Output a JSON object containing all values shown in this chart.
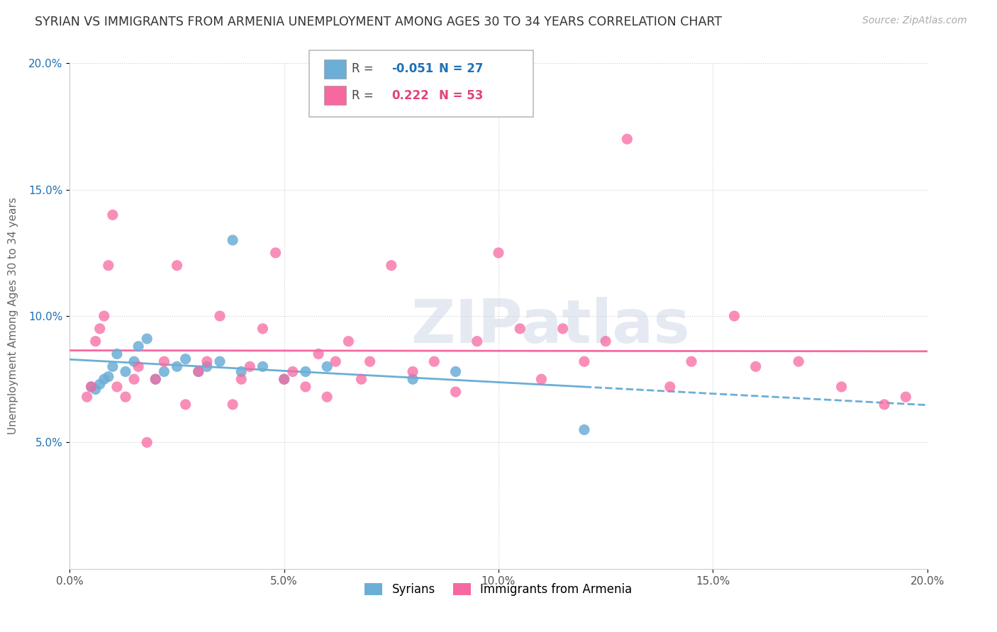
{
  "title": "SYRIAN VS IMMIGRANTS FROM ARMENIA UNEMPLOYMENT AMONG AGES 30 TO 34 YEARS CORRELATION CHART",
  "source": "Source: ZipAtlas.com",
  "ylabel": "Unemployment Among Ages 30 to 34 years",
  "xmin": 0.0,
  "xmax": 0.2,
  "ymin": 0.0,
  "ymax": 0.2,
  "yticks": [
    0.05,
    0.1,
    0.15,
    0.2
  ],
  "xticks": [
    0.0,
    0.05,
    0.1,
    0.15,
    0.2
  ],
  "xtick_labels": [
    "0.0%",
    "5.0%",
    "10.0%",
    "15.0%",
    "20.0%"
  ],
  "ytick_labels": [
    "5.0%",
    "10.0%",
    "15.0%",
    "20.0%"
  ],
  "syrians_color": "#6baed6",
  "armenia_color": "#f768a1",
  "syrians_label": "Syrians",
  "armenia_label": "Immigrants from Armenia",
  "R_syrians": -0.051,
  "N_syrians": 27,
  "R_armenia": 0.222,
  "N_armenia": 53,
  "legend_R_color_syrians": "#2171b5",
  "legend_R_color_armenia": "#e0437a",
  "background_color": "#ffffff",
  "watermark_text": "ZIPatlas",
  "syrians_x": [
    0.005,
    0.006,
    0.007,
    0.008,
    0.009,
    0.01,
    0.011,
    0.013,
    0.015,
    0.016,
    0.018,
    0.02,
    0.022,
    0.025,
    0.027,
    0.03,
    0.032,
    0.035,
    0.038,
    0.04,
    0.045,
    0.05,
    0.055,
    0.06,
    0.08,
    0.09,
    0.12
  ],
  "syrians_y": [
    0.072,
    0.071,
    0.073,
    0.075,
    0.076,
    0.08,
    0.085,
    0.078,
    0.082,
    0.088,
    0.091,
    0.075,
    0.078,
    0.08,
    0.083,
    0.078,
    0.08,
    0.082,
    0.13,
    0.078,
    0.08,
    0.075,
    0.078,
    0.08,
    0.075,
    0.078,
    0.055
  ],
  "armenia_x": [
    0.004,
    0.005,
    0.006,
    0.007,
    0.008,
    0.009,
    0.01,
    0.011,
    0.013,
    0.015,
    0.016,
    0.018,
    0.02,
    0.022,
    0.025,
    0.027,
    0.03,
    0.032,
    0.035,
    0.038,
    0.04,
    0.042,
    0.045,
    0.048,
    0.05,
    0.052,
    0.055,
    0.058,
    0.06,
    0.062,
    0.065,
    0.068,
    0.07,
    0.075,
    0.08,
    0.085,
    0.09,
    0.095,
    0.1,
    0.105,
    0.11,
    0.115,
    0.12,
    0.125,
    0.13,
    0.14,
    0.145,
    0.155,
    0.16,
    0.17,
    0.18,
    0.19,
    0.195
  ],
  "armenia_y": [
    0.068,
    0.072,
    0.09,
    0.095,
    0.1,
    0.12,
    0.14,
    0.072,
    0.068,
    0.075,
    0.08,
    0.05,
    0.075,
    0.082,
    0.12,
    0.065,
    0.078,
    0.082,
    0.1,
    0.065,
    0.075,
    0.08,
    0.095,
    0.125,
    0.075,
    0.078,
    0.072,
    0.085,
    0.068,
    0.082,
    0.09,
    0.075,
    0.082,
    0.12,
    0.078,
    0.082,
    0.07,
    0.09,
    0.125,
    0.095,
    0.075,
    0.095,
    0.082,
    0.09,
    0.17,
    0.072,
    0.082,
    0.1,
    0.08,
    0.082,
    0.072,
    0.065,
    0.068
  ]
}
